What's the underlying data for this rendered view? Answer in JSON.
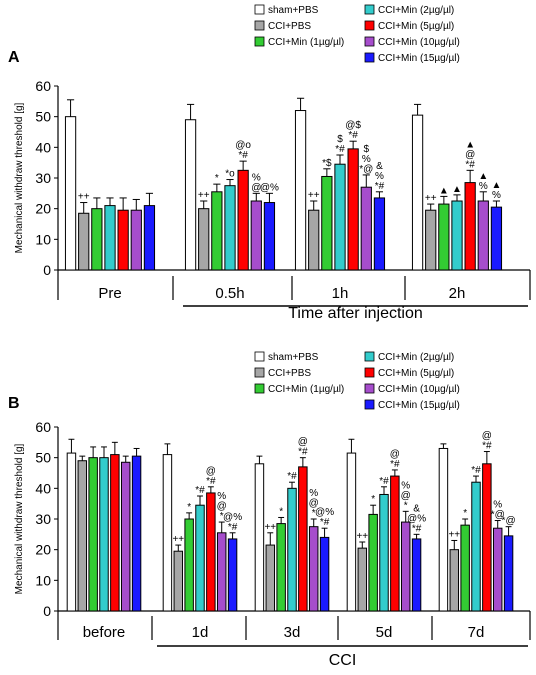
{
  "colors": {
    "sham+PBS": "#ffffff",
    "CCI+PBS": "#a6a6a6",
    "CCI+Min (1µg/µl)": "#33cc33",
    "CCI+Min (2µg/µl)": "#33cccc",
    "CCI+Min (5µg/µl)": "#ff0000",
    "CCI+Min (10µg/µl)": "#a64dcc",
    "CCI+Min (15µg/µl)": "#1a1aff"
  },
  "chart_data": [
    {
      "panel": "A",
      "type": "bar",
      "ylabel": "Mechanical withdraw threshold [g]",
      "ylim": [
        0,
        60
      ],
      "yticks": [
        "0",
        "10",
        "20",
        "30",
        "40",
        "50",
        "60"
      ],
      "categories": [
        "Pre",
        "0.5h",
        "1h",
        "2h"
      ],
      "group_label": "Time after injection",
      "legend": [
        "sham+PBS",
        "CCI+PBS",
        "CCI+Min (1µg/µl)",
        "CCI+Min (2µg/µl)",
        "CCI+Min (5µg/µl)",
        "CCI+Min (10µg/µl)",
        "CCI+Min (15µg/µl)"
      ],
      "series": [
        {
          "name": "sham+PBS",
          "values": [
            50,
            49,
            52,
            50.5
          ],
          "errors": [
            5.5,
            5,
            4,
            3.5
          ],
          "annotations": [
            "",
            "",
            "",
            ""
          ]
        },
        {
          "name": "CCI+PBS",
          "values": [
            18.5,
            20,
            19.5,
            19.5
          ],
          "errors": [
            3.5,
            2.5,
            3,
            2
          ],
          "annotations": [
            "++",
            "++",
            "++",
            "++"
          ]
        },
        {
          "name": "CCI+Min (1µg/µl)",
          "values": [
            20,
            25.5,
            30.5,
            21.5
          ],
          "errors": [
            3.5,
            2.5,
            2.5,
            2.5
          ],
          "annotations": [
            "",
            "*",
            "*$",
            "▲"
          ]
        },
        {
          "name": "CCI+Min (2µg/µl)",
          "values": [
            21,
            27.5,
            34.5,
            22.5
          ],
          "errors": [
            2.5,
            2,
            3,
            2
          ],
          "annotations": [
            "",
            "*o",
            "$\n*#",
            "▲"
          ]
        },
        {
          "name": "CCI+Min (5µg/µl)",
          "values": [
            19.5,
            32.5,
            39.5,
            28.5
          ],
          "errors": [
            4,
            3,
            2.5,
            4
          ],
          "annotations": [
            "",
            "@o\n*#",
            "@$\n*#",
            "▲\n@\n*#"
          ]
        },
        {
          "name": "CCI+Min (10µg/µl)",
          "values": [
            19.5,
            22.5,
            27,
            22.5
          ],
          "errors": [
            3.5,
            2.5,
            4,
            3
          ],
          "annotations": [
            "",
            "%\n@",
            "$\n%\n*@",
            "▲\n%"
          ]
        },
        {
          "name": "CCI+Min (15µg/µl)",
          "values": [
            21,
            22,
            23.5,
            20.5
          ],
          "errors": [
            4,
            3,
            2,
            2
          ],
          "annotations": [
            "",
            "@%",
            "&\n%\n*#",
            "▲\n%"
          ]
        }
      ]
    },
    {
      "panel": "B",
      "type": "bar",
      "ylabel": "Mechanical withdraw threshold [g]",
      "ylim": [
        0,
        60
      ],
      "yticks": [
        "0",
        "10",
        "20",
        "30",
        "40",
        "50",
        "60"
      ],
      "categories": [
        "before",
        "1d",
        "3d",
        "5d",
        "7d"
      ],
      "group_label": "CCI",
      "legend": [
        "sham+PBS",
        "CCI+PBS",
        "CCI+Min (1µg/µl)",
        "CCI+Min (2µg/µl)",
        "CCI+Min (5µg/µl)",
        "CCI+Min (10µg/µl)",
        "CCI+Min (15µg/µl)"
      ],
      "series": [
        {
          "name": "sham+PBS",
          "values": [
            51.5,
            51,
            48,
            51.5,
            53
          ],
          "errors": [
            4.5,
            3.5,
            2.5,
            4.5,
            1.5
          ],
          "annotations": [
            "",
            "",
            "",
            "",
            ""
          ]
        },
        {
          "name": "CCI+PBS",
          "values": [
            49,
            19.5,
            21.5,
            20.5,
            20
          ],
          "errors": [
            1.5,
            2,
            4,
            2,
            3
          ],
          "annotations": [
            "",
            "++",
            "++",
            "++",
            "++"
          ]
        },
        {
          "name": "CCI+Min (1µg/µl)",
          "values": [
            50,
            30,
            28.5,
            31.5,
            28
          ],
          "errors": [
            3.5,
            2,
            2,
            3,
            2
          ],
          "annotations": [
            "",
            "*",
            "*",
            "*",
            "*"
          ]
        },
        {
          "name": "CCI+Min (2µg/µl)",
          "values": [
            50,
            34.5,
            40,
            38,
            42
          ],
          "errors": [
            3.5,
            3,
            2,
            2.5,
            2
          ],
          "annotations": [
            "",
            "*#",
            "*#",
            "*#",
            "*#"
          ]
        },
        {
          "name": "CCI+Min (5µg/µl)",
          "values": [
            51,
            38.5,
            47,
            44,
            48
          ],
          "errors": [
            4,
            2,
            3,
            2,
            4
          ],
          "annotations": [
            "",
            "@\n*#",
            "@\n*#",
            "@\n*#",
            "@\n*#"
          ]
        },
        {
          "name": "CCI+Min (10µg/µl)",
          "values": [
            48.5,
            25.5,
            27.5,
            29,
            27
          ],
          "errors": [
            2,
            3.5,
            2.5,
            3.5,
            2.5
          ],
          "annotations": [
            "",
            "%\n@\n*",
            "%\n@\n*",
            "%\n@\n*",
            "%\n*@"
          ]
        },
        {
          "name": "CCI+Min (15µg/µl)",
          "values": [
            50.5,
            23.5,
            24,
            23.5,
            24.5
          ],
          "errors": [
            2.5,
            2,
            3,
            1.5,
            3
          ],
          "annotations": [
            "",
            "@%\n*#",
            "@%\n*#",
            "&\n@%\n*#",
            "*@"
          ]
        }
      ]
    }
  ]
}
